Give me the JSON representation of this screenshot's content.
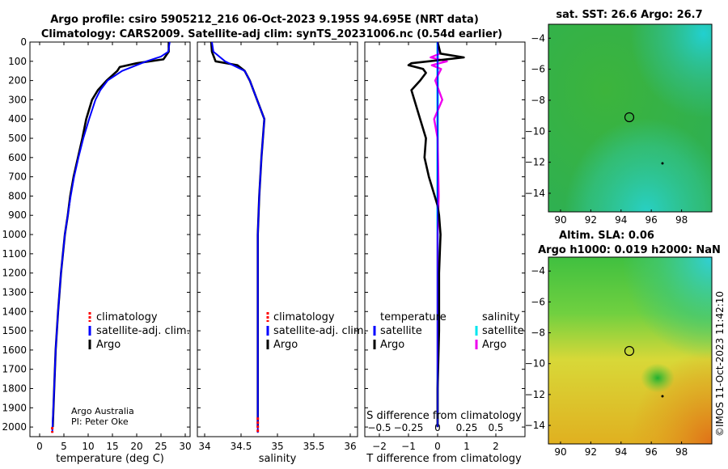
{
  "title": {
    "line1": "Argo profile: csiro 5905212_216 06-Oct-2023 9.195S 94.695E (NRT data)",
    "line2": "Climatology: CARS2009. Satellite-adj clim: synTS_20231006.nc (0.54d earlier)"
  },
  "credits": {
    "org": "Argo Australia",
    "pi": "PI: Peter Oke"
  },
  "watermark": "©IMOS 11-Oct-2023 11:42:10",
  "colors": {
    "climatology": "#ff0000",
    "satellite": "#0000ff",
    "argo": "#000000",
    "sat_salinity": "#00e5ee",
    "argo_salinity": "#ee00ee"
  },
  "legend_temp": {
    "climatology": "climatology",
    "satellite": "satellite-adj. clim.",
    "argo": "Argo"
  },
  "legend_sal": {
    "climatology": "climatology",
    "satellite": "satellite-adj. clim.",
    "argo": "Argo"
  },
  "legend_diff": {
    "temp_header": "temperature",
    "sal_header": "salinity",
    "temp_sat": "satellite",
    "temp_argo": "Argo",
    "sal_sat": "satellite",
    "sal_argo": "Argo"
  },
  "map_sst": {
    "title": "sat. SST: 26.6 Argo: 26.7",
    "xticks": [
      "90",
      "92",
      "94",
      "96",
      "98"
    ],
    "yticks": [
      "-4",
      "-6",
      "-8",
      "-10",
      "-12",
      "-14"
    ]
  },
  "map_sla": {
    "title1": "Altim. SLA: 0.06",
    "title2": "Argo h1000: 0.019 h2000: NaN",
    "xticks": [
      "90",
      "92",
      "94",
      "96",
      "98"
    ],
    "yticks": [
      "-4",
      "-6",
      "-8",
      "-10",
      "-12",
      "-14"
    ]
  },
  "chart_data": [
    {
      "type": "line",
      "name": "temperature profile",
      "xlabel": "temperature (deg C)",
      "ylabel": "depth",
      "xlim": [
        -2,
        31
      ],
      "ylim": [
        2050,
        0
      ],
      "xticks": [
        0,
        5,
        10,
        15,
        20,
        25,
        30
      ],
      "yticks": [
        0,
        100,
        200,
        300,
        400,
        500,
        600,
        700,
        800,
        900,
        1000,
        1100,
        1200,
        1300,
        1400,
        1500,
        1600,
        1700,
        1800,
        1900,
        2000
      ],
      "series": [
        {
          "name": "climatology",
          "depth": [
            2000,
            2030
          ],
          "values": [
            2.6,
            2.6
          ]
        },
        {
          "name": "satellite-adj. clim.",
          "depth": [
            0,
            50,
            75,
            100,
            150,
            200,
            250,
            300,
            400,
            500,
            600,
            700,
            800,
            900,
            1000,
            1200,
            1400,
            1600,
            1800,
            2030
          ],
          "values": [
            26.8,
            26.5,
            25.0,
            22.0,
            17.0,
            14.0,
            12.5,
            11.5,
            10.2,
            9.0,
            8.0,
            7.1,
            6.4,
            5.8,
            5.2,
            4.4,
            3.8,
            3.3,
            3.0,
            2.6
          ]
        },
        {
          "name": "Argo",
          "depth": [
            0,
            50,
            90,
            110,
            130,
            150,
            200,
            250,
            300,
            400,
            500,
            600,
            700,
            800,
            900,
            1000,
            1200,
            1400,
            1600,
            1800,
            2000
          ],
          "values": [
            26.6,
            26.6,
            25.5,
            20.0,
            16.5,
            16.0,
            13.8,
            12.0,
            10.8,
            9.6,
            8.8,
            7.9,
            7.0,
            6.3,
            5.8,
            5.2,
            4.4,
            3.8,
            3.3,
            3.0,
            2.7
          ]
        }
      ]
    },
    {
      "type": "line",
      "name": "salinity profile",
      "xlabel": "salinity",
      "ylim": [
        2050,
        0
      ],
      "xlim": [
        33.9,
        36.1
      ],
      "xticks": [
        34,
        34.5,
        35,
        35.5,
        36
      ],
      "series": [
        {
          "name": "climatology",
          "depth": [
            1950,
            2030
          ],
          "values": [
            34.73,
            34.73
          ]
        },
        {
          "name": "satellite-adj. clim.",
          "depth": [
            0,
            50,
            100,
            150,
            200,
            300,
            400,
            500,
            600,
            800,
            1000,
            1200,
            1500,
            1800,
            2030
          ],
          "values": [
            34.1,
            34.12,
            34.28,
            34.55,
            34.62,
            34.72,
            34.82,
            34.8,
            34.78,
            34.75,
            34.73,
            34.73,
            34.73,
            34.73,
            34.73
          ]
        },
        {
          "name": "Argo",
          "depth": [
            0,
            50,
            100,
            120,
            150,
            200,
            300,
            400,
            500,
            600,
            800,
            1000,
            1200,
            1500,
            1800,
            2000
          ],
          "values": [
            34.09,
            34.1,
            34.15,
            34.45,
            34.55,
            34.62,
            34.72,
            34.82,
            34.8,
            34.78,
            34.75,
            34.73,
            34.73,
            34.73,
            34.73,
            34.73
          ]
        }
      ]
    },
    {
      "type": "line",
      "name": "difference from climatology",
      "xlabel": "T difference from climatology",
      "x2label": "S difference from climatology",
      "xlim": [
        -2.5,
        3.0
      ],
      "xticks": [
        -2,
        -1,
        0,
        1,
        2
      ],
      "x2lim": [
        -0.625,
        0.75
      ],
      "x2ticks": [
        -0.5,
        -0.25,
        0,
        0.25,
        0.5
      ],
      "ylim": [
        2050,
        0
      ],
      "series": [
        {
          "name": "temperature satellite",
          "depth": [
            0,
            100,
            300,
            600,
            1000,
            1500,
            2000
          ],
          "values": [
            0,
            0,
            0,
            0,
            0,
            0,
            0
          ]
        },
        {
          "name": "temperature Argo",
          "depth": [
            0,
            60,
            80,
            100,
            110,
            120,
            140,
            160,
            200,
            250,
            300,
            400,
            500,
            600,
            700,
            800,
            850,
            900,
            1000,
            1200,
            1500,
            1800,
            2000
          ],
          "values": [
            0,
            0.1,
            0.9,
            -0.3,
            -0.9,
            -1.0,
            -0.5,
            -0.4,
            -0.6,
            -0.9,
            -0.8,
            -0.6,
            -0.4,
            -0.45,
            -0.3,
            -0.1,
            0.0,
            0.05,
            0.1,
            0.05,
            0.05,
            0.0,
            0.0
          ]
        },
        {
          "name": "salinity satellite",
          "depth": [
            0,
            200,
            500,
            1000,
            1500,
            2000
          ],
          "values": [
            0,
            0,
            0,
            0,
            0,
            0
          ]
        },
        {
          "name": "salinity Argo",
          "depth": [
            0,
            60,
            80,
            100,
            120,
            140,
            200,
            300,
            400,
            500,
            800,
            1000,
            1300,
            1600,
            2000
          ],
          "values": [
            0,
            0.02,
            -0.06,
            0.08,
            -0.05,
            0.03,
            -0.02,
            0.04,
            -0.03,
            0.0,
            0.01,
            0.0,
            0.0,
            0.0,
            0.0
          ]
        }
      ]
    }
  ]
}
